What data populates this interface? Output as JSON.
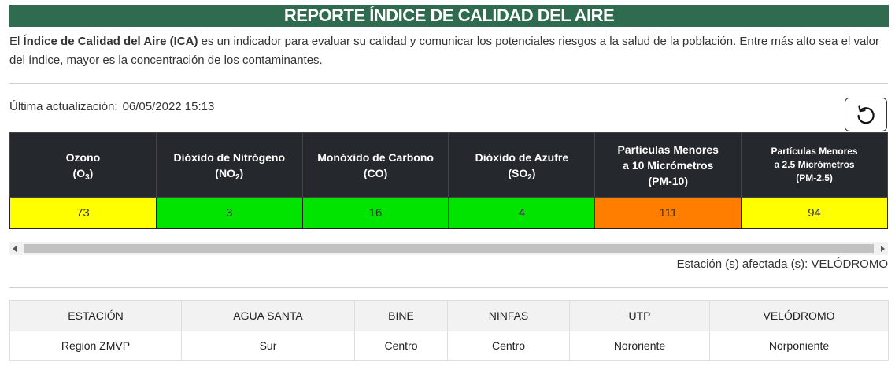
{
  "title": "REPORTE ÍNDICE DE CALIDAD DEL AIRE",
  "intro": {
    "prefix": "El ",
    "bold": "Índice de Calidad del Aire (ICA)",
    "rest": " es un indicador para evaluar su calidad y comunicar los potenciales riesgos a la salud de la población. Entre más alto sea el valor del índice, mayor es la concentración de los contaminantes."
  },
  "last_update": {
    "label": "Última actualización:",
    "value": "06/05/2022 15:13"
  },
  "refresh": {
    "icon": "refresh-icon"
  },
  "pollutants": [
    {
      "name": "Ozono",
      "code": "O",
      "sub": "3",
      "value": "73",
      "color": "#ffff00"
    },
    {
      "name": "Dióxido de Nitrógeno",
      "code": "NO",
      "sub": "2",
      "value": "3",
      "color": "#00e400"
    },
    {
      "name": "Monóxido de Carbono",
      "code": "CO",
      "sub": "",
      "value": "16",
      "color": "#00e400"
    },
    {
      "name": "Dióxido de Azufre",
      "code": "SO",
      "sub": "2",
      "value": "4",
      "color": "#00e400"
    },
    {
      "name": "Partículas Menores",
      "name2": "a 10 Micrómetros",
      "code": "PM-10",
      "sub": "",
      "value": "111",
      "color": "#ff7e00"
    },
    {
      "name": "Partículas Menores",
      "name2": "a 2.5 Micrómetros",
      "code": "PM-2.5",
      "sub": "",
      "value": "94",
      "color": "#ffff00"
    }
  ],
  "affected": "Estación (s) afectada (s): VELÓDROMO",
  "stations": {
    "headers": [
      "ESTACIÓN",
      "AGUA SANTA",
      "BINE",
      "NINFAS",
      "UTP",
      "VELÓDROMO"
    ],
    "row": [
      "Región ZMVP",
      "Sur",
      "Centro",
      "Centro",
      "Nororiente",
      "Norponiente"
    ]
  }
}
